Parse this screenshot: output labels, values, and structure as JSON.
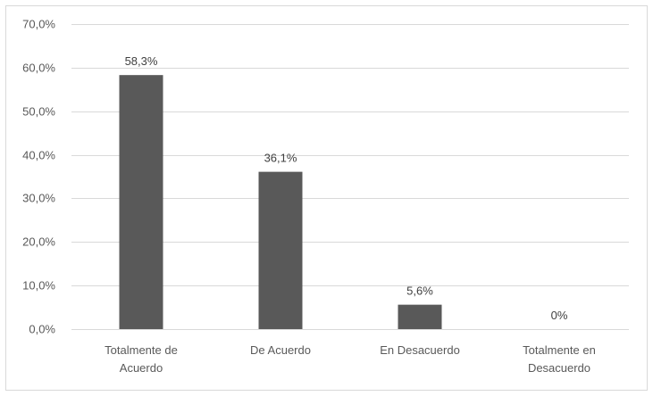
{
  "chart_data": {
    "type": "bar",
    "categories": [
      [
        "Totalmente de",
        "Acuerdo"
      ],
      [
        "De Acuerdo"
      ],
      [
        "En Desacuerdo"
      ],
      [
        "Totalmente en",
        "Desacuerdo"
      ]
    ],
    "values": [
      58.3,
      36.1,
      5.6,
      0
    ],
    "data_labels": [
      "58,3%",
      "36,1%",
      "5,6%",
      "0%"
    ],
    "yticks": [
      0,
      10,
      20,
      30,
      40,
      50,
      60,
      70
    ],
    "ytick_labels": [
      "0,0%",
      "10,0%",
      "20,0%",
      "30,0%",
      "40,0%",
      "50,0%",
      "60,0%",
      "70,0%"
    ],
    "ylim": [
      0,
      70
    ],
    "grid": true,
    "bar_color": "#595959",
    "grid_color": "#d9d9d9"
  }
}
